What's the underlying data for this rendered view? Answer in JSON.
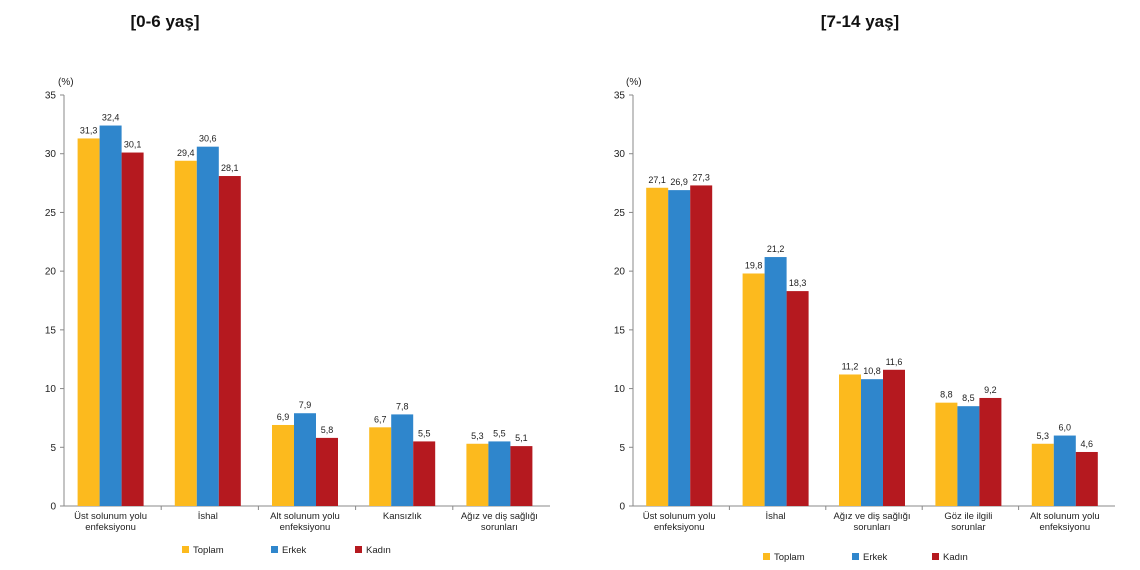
{
  "colors": {
    "toplam": "#FCBA1E",
    "erkek": "#2F86CC",
    "kadin": "#B5191F"
  },
  "chart_data": [
    {
      "type": "bar",
      "title": "[0-6 yaş]",
      "ylabel": "(%)",
      "ylim": [
        0,
        35
      ],
      "yticks": [
        "0",
        "5",
        "10",
        "15",
        "20",
        "25",
        "30",
        "35"
      ],
      "categories": [
        [
          "Üst solunum yolu",
          "enfeksiyonu"
        ],
        [
          "İshal"
        ],
        [
          "Alt solunum yolu",
          "enfeksiyonu"
        ],
        [
          "Kansızlık"
        ],
        [
          "Ağız ve diş sağlığı",
          "sorunları"
        ]
      ],
      "series": [
        {
          "name": "Toplam",
          "values": [
            31.3,
            29.4,
            6.9,
            6.7,
            5.3
          ],
          "labels": [
            "31,3",
            "29,4",
            "6,9",
            "6,7",
            "5,3"
          ]
        },
        {
          "name": "Erkek",
          "values": [
            32.4,
            30.6,
            7.9,
            7.8,
            5.5
          ],
          "labels": [
            "32,4",
            "30,6",
            "7,9",
            "7,8",
            "5,5"
          ]
        },
        {
          "name": "Kadın",
          "values": [
            30.1,
            28.1,
            5.8,
            5.5,
            5.1
          ],
          "labels": [
            "30,1",
            "28,1",
            "5,8",
            "5,5",
            "5,1"
          ]
        }
      ],
      "legend": [
        "Toplam",
        "Erkek",
        "Kadın"
      ],
      "legend_position": "bottom"
    },
    {
      "type": "bar",
      "title": "[7-14 yaş]",
      "ylabel": "(%)",
      "ylim": [
        0,
        35
      ],
      "yticks": [
        "0",
        "5",
        "10",
        "15",
        "20",
        "25",
        "30",
        "35"
      ],
      "categories": [
        [
          "Üst solunum yolu",
          "enfeksiyonu"
        ],
        [
          "İshal"
        ],
        [
          "Ağız ve diş sağlığı",
          "sorunları"
        ],
        [
          "Göz ile ilgili",
          "sorunlar"
        ],
        [
          "Alt solunum yolu",
          "enfeksiyonu"
        ]
      ],
      "series": [
        {
          "name": "Toplam",
          "values": [
            27.1,
            19.8,
            11.2,
            8.8,
            5.3
          ],
          "labels": [
            "27,1",
            "19,8",
            "11,2",
            "8,8",
            "5,3"
          ]
        },
        {
          "name": "Erkek",
          "values": [
            26.9,
            21.2,
            10.8,
            8.5,
            6.0
          ],
          "labels": [
            "26,9",
            "21,2",
            "10,8",
            "8,5",
            "6,0"
          ]
        },
        {
          "name": "Kadın",
          "values": [
            27.3,
            18.3,
            11.6,
            9.2,
            4.6
          ],
          "labels": [
            "27,3",
            "18,3",
            "11,6",
            "9,2",
            "4,6"
          ]
        }
      ],
      "legend": [
        "Toplam",
        "Erkek",
        "Kadın"
      ],
      "legend_position": "bottom"
    }
  ]
}
